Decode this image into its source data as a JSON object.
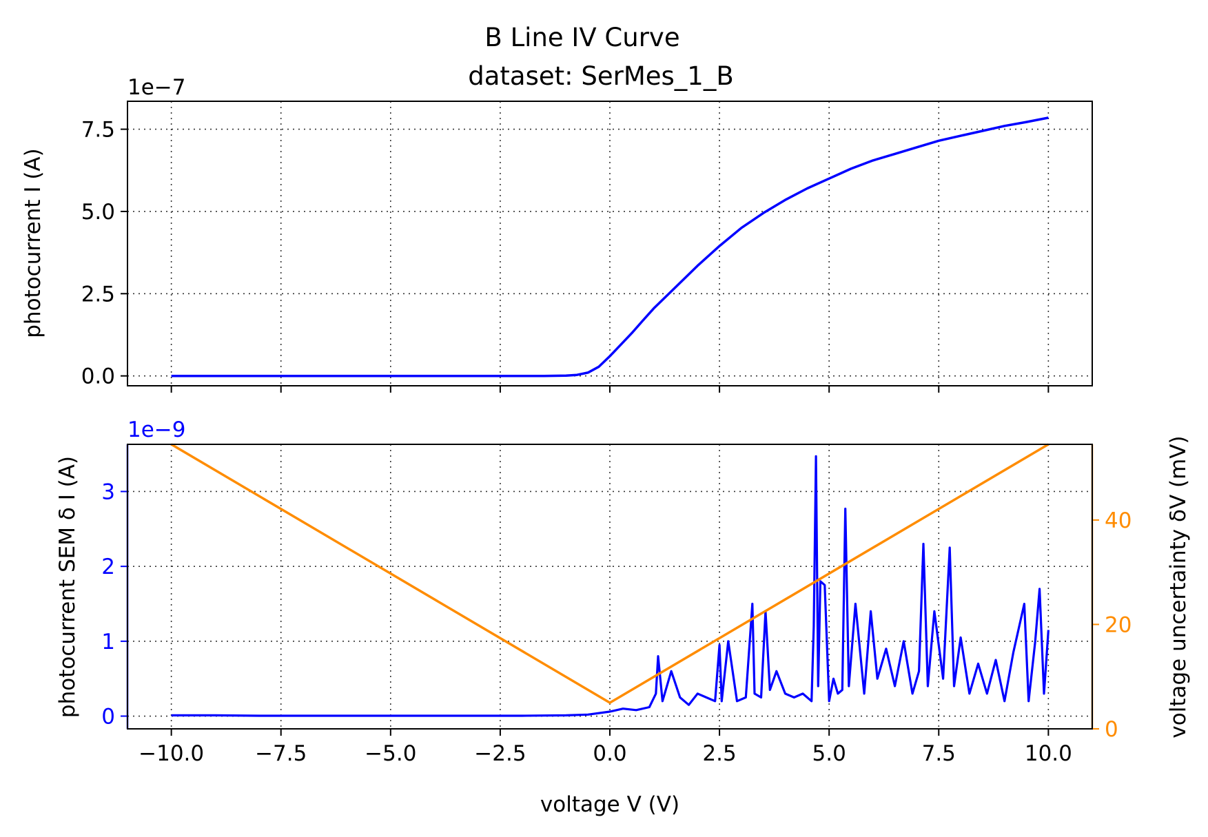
{
  "title_line1": "B Line IV Curve",
  "title_line2": "dataset: SerMes_1_B",
  "colors": {
    "current": "#0000ff",
    "voltage_unc": "#ff8c00",
    "axes": "#000000"
  },
  "chart_data": [
    {
      "type": "line",
      "ylabel": "photocurrent I (A)",
      "offset_text": "1e−7",
      "xlim": [
        -11,
        11
      ],
      "ylim": [
        -0.3,
        8.35
      ],
      "grid": true,
      "x_ticks": [
        -10,
        -7.5,
        -5,
        -2.5,
        0,
        2.5,
        5,
        7.5,
        10
      ],
      "y_ticks": [
        0,
        2.5,
        5,
        7.5
      ],
      "y_tick_labels": [
        "0.0",
        "2.5",
        "5.0",
        "7.5"
      ],
      "series": [
        {
          "x": [
            -10,
            -9,
            -8,
            -7,
            -6,
            -5,
            -4,
            -3,
            -2,
            -1.5,
            -1,
            -0.75,
            -0.5,
            -0.25,
            0,
            0.25,
            0.5,
            0.75,
            1,
            1.5,
            2,
            2.5,
            3,
            3.5,
            4,
            4.5,
            5,
            5.5,
            6,
            6.5,
            7,
            7.5,
            8,
            8.5,
            9,
            9.5,
            10
          ],
          "y": [
            0,
            0,
            0,
            0,
            0,
            0,
            0,
            0,
            0,
            0,
            0.01,
            0.03,
            0.1,
            0.28,
            0.6,
            0.95,
            1.3,
            1.68,
            2.05,
            2.7,
            3.35,
            3.95,
            4.5,
            4.95,
            5.35,
            5.7,
            6.0,
            6.3,
            6.55,
            6.75,
            6.95,
            7.15,
            7.3,
            7.45,
            7.6,
            7.72,
            7.85
          ]
        }
      ]
    },
    {
      "type": "line",
      "xlabel": "voltage V (V)",
      "ylabel": "photocurrent SEM δ I (A)",
      "y2label": "voltage uncertainty δV (mV)",
      "offset_text": "1e−9",
      "xlim": [
        -11,
        11
      ],
      "ylim": [
        -0.17,
        3.63
      ],
      "y2lim": [
        0,
        54.5
      ],
      "grid": true,
      "x_ticks": [
        -10,
        -7.5,
        -5,
        -2.5,
        0,
        2.5,
        5,
        7.5,
        10
      ],
      "x_tick_labels": [
        "−10.0",
        "−7.5",
        "−5.0",
        "−2.5",
        "0.0",
        "2.5",
        "5.0",
        "7.5",
        "10.0"
      ],
      "y_ticks": [
        0,
        1,
        2,
        3
      ],
      "y2_ticks": [
        0,
        20,
        40
      ],
      "series": [
        {
          "axis": "left",
          "x": [
            -10,
            -9,
            -8,
            -7,
            -6,
            -5,
            -4,
            -3,
            -2,
            -1,
            -0.5,
            0,
            0.3,
            0.6,
            0.9,
            1.05,
            1.1,
            1.2,
            1.4,
            1.6,
            1.8,
            2.0,
            2.2,
            2.4,
            2.5,
            2.55,
            2.7,
            2.9,
            3.1,
            3.25,
            3.3,
            3.45,
            3.55,
            3.65,
            3.8,
            4.0,
            4.2,
            4.4,
            4.6,
            4.65,
            4.7,
            4.75,
            4.8,
            4.9,
            5.0,
            5.1,
            5.2,
            5.3,
            5.37,
            5.45,
            5.6,
            5.8,
            5.95,
            6.1,
            6.3,
            6.5,
            6.7,
            6.9,
            7.05,
            7.15,
            7.25,
            7.4,
            7.6,
            7.75,
            7.85,
            8.0,
            8.2,
            8.4,
            8.6,
            8.8,
            9.0,
            9.2,
            9.45,
            9.55,
            9.7,
            9.8,
            9.9,
            10.0
          ],
          "y": [
            0.01,
            0.01,
            0.005,
            0.005,
            0.005,
            0.005,
            0.005,
            0.005,
            0.005,
            0.01,
            0.02,
            0.06,
            0.1,
            0.08,
            0.12,
            0.3,
            0.8,
            0.2,
            0.6,
            0.25,
            0.15,
            0.3,
            0.25,
            0.2,
            0.95,
            0.2,
            1.0,
            0.2,
            0.25,
            1.5,
            0.3,
            0.25,
            1.4,
            0.35,
            0.6,
            0.3,
            0.25,
            0.3,
            0.2,
            1.2,
            3.47,
            0.4,
            1.8,
            1.75,
            0.2,
            0.5,
            0.3,
            0.35,
            2.77,
            0.4,
            1.5,
            0.3,
            1.4,
            0.5,
            0.9,
            0.4,
            1.0,
            0.3,
            0.6,
            2.3,
            0.4,
            1.4,
            0.5,
            2.25,
            0.4,
            1.05,
            0.3,
            0.7,
            0.3,
            0.75,
            0.2,
            0.85,
            1.5,
            0.2,
            1.0,
            1.7,
            0.3,
            1.15
          ]
        },
        {
          "axis": "right",
          "x": [
            -10,
            0,
            10
          ],
          "y": [
            54.5,
            5,
            54.5
          ]
        }
      ]
    }
  ]
}
